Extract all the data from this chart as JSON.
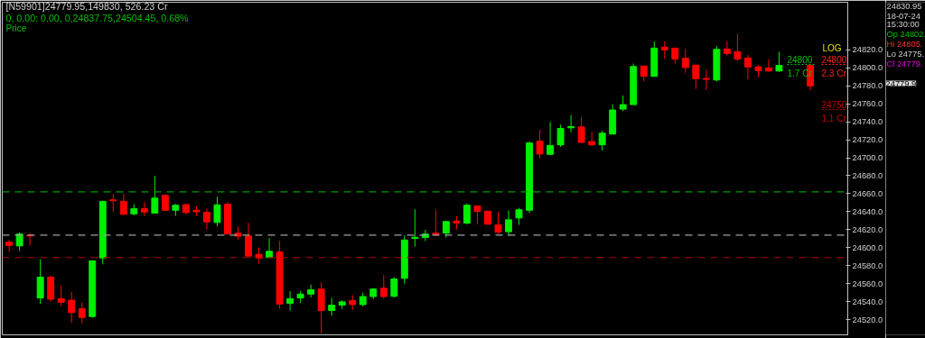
{
  "chart_data": {
    "type": "candlestick",
    "title": "[N59901]24779.95,149830, 526.23 Cr",
    "subtitle": "0,  0.00:  0.00,  0,24837.75,24504.45, 0.68%",
    "categories": [
      null,
      null,
      null,
      null,
      null,
      null,
      null,
      null,
      null,
      null,
      null,
      null,
      null,
      null,
      null,
      null,
      null,
      null,
      null,
      null,
      null,
      null,
      null,
      null,
      null,
      null,
      null,
      null,
      null,
      null,
      null,
      null,
      null,
      null,
      null,
      null,
      null,
      null,
      null,
      null,
      null,
      null,
      null,
      null,
      null,
      null,
      null,
      null,
      null,
      null,
      null,
      null,
      null,
      null,
      null,
      null,
      null,
      null,
      null,
      null,
      null,
      null,
      null,
      null,
      null,
      null,
      null,
      null,
      null,
      null,
      null,
      null,
      null,
      null,
      null,
      null,
      null,
      null
    ],
    "ohlc": [
      [
        24606.2,
        24608.5,
        24595.3,
        24602.5
      ],
      [
        24601.9,
        24617.1,
        24596.3,
        24615.1
      ],
      [
        24613.8,
        24615.8,
        24602.5,
        24613.1
      ],
      [
        24544.0,
        24587.0,
        24537.3,
        24567.1
      ],
      [
        24567.1,
        24569.1,
        24540.0,
        24542.6
      ],
      [
        24543.3,
        24558.2,
        24535.0,
        24539.3
      ],
      [
        24541.6,
        24550.9,
        24516.2,
        24527.7
      ],
      [
        24532.0,
        24539.0,
        24515.8,
        24522.4
      ],
      [
        24523.4,
        24586.0,
        24522.0,
        24585.3
      ],
      [
        24588.6,
        24652.5,
        24581.4,
        24651.5
      ],
      [
        24653.2,
        24659.8,
        24640.0,
        24652.1
      ],
      [
        24651.5,
        24659.8,
        24637.0,
        24637.0
      ],
      [
        24637.6,
        24648.2,
        24636.0,
        24643.3
      ],
      [
        24643.3,
        24650.9,
        24635.0,
        24639.6
      ],
      [
        24638.3,
        24680.0,
        24638.3,
        24655.2
      ],
      [
        24658.2,
        24659.5,
        24641.6,
        24641.6
      ],
      [
        24641.6,
        24648.6,
        24635.3,
        24647.2
      ],
      [
        24647.9,
        24649.2,
        24637.0,
        24639.0
      ],
      [
        24641.6,
        24645.9,
        24635.0,
        24639.9
      ],
      [
        24639.3,
        24643.3,
        24620.4,
        24628.7
      ],
      [
        24628.0,
        24656.8,
        24623.7,
        24647.6
      ],
      [
        24648.2,
        24650.9,
        24615.1,
        24615.1
      ],
      [
        24616.1,
        24623.7,
        24608.5,
        24612.8
      ],
      [
        24613.1,
        24627.7,
        24590.6,
        24590.6
      ],
      [
        24592.6,
        24600.2,
        24582.0,
        24588.6
      ],
      [
        24589.0,
        24610.5,
        24589.0,
        24595.9
      ],
      [
        24595.3,
        24607.2,
        24532.4,
        24537.3
      ],
      [
        24538.0,
        24551.6,
        24530.0,
        24543.3
      ],
      [
        24544.0,
        24551.6,
        24538.3,
        24548.3
      ],
      [
        24548.3,
        24558.9,
        24544.6,
        24553.2
      ],
      [
        24553.9,
        24561.5,
        24504.45,
        24530.0
      ],
      [
        24530.0,
        24544.0,
        24524.4,
        24536.0
      ],
      [
        24536.0,
        24541.6,
        24531.7,
        24539.7
      ],
      [
        24541.0,
        24547.3,
        24531.0,
        24536.7
      ],
      [
        24536.7,
        24549.9,
        24534.4,
        24545.6
      ],
      [
        24545.6,
        24554.9,
        24542.6,
        24553.9
      ],
      [
        24554.9,
        24569.4,
        24543.3,
        24545.6
      ],
      [
        24545.9,
        24567.1,
        24544.3,
        24565.1
      ],
      [
        24565.8,
        24613.5,
        24559.8,
        24608.5
      ],
      [
        24610.2,
        24642.6,
        24601.2,
        24611.5
      ],
      [
        24611.2,
        24619.8,
        24607.2,
        24615.1
      ],
      [
        24616.1,
        24642.2,
        24612.8,
        24614.5
      ],
      [
        24616.1,
        24630.0,
        24611.1,
        24629.0
      ],
      [
        24629.6,
        24635.3,
        24620.1,
        24627.3
      ],
      [
        24627.3,
        24649.2,
        24626.0,
        24647.2
      ],
      [
        24646.5,
        24646.5,
        24626.0,
        24640.3
      ],
      [
        24640.6,
        24640.6,
        24626.0,
        24626.0
      ],
      [
        24625.4,
        24639.9,
        24615.1,
        24617.4
      ],
      [
        24617.7,
        24641.3,
        24612.8,
        24631.0
      ],
      [
        24633.0,
        24644.2,
        24625.4,
        24642.2
      ],
      [
        24641.6,
        24718.0,
        24638.6,
        24716.4
      ],
      [
        24718.4,
        24730.9,
        24699.2,
        24704.1
      ],
      [
        24703.8,
        24739.6,
        24703.8,
        24713.7
      ],
      [
        24714.4,
        24736.9,
        24712.1,
        24732.6
      ],
      [
        24733.3,
        24747.5,
        24728.3,
        24734.6
      ],
      [
        24734.3,
        24745.5,
        24717.0,
        24717.0
      ],
      [
        24718.0,
        24728.6,
        24713.1,
        24714.4
      ],
      [
        24714.4,
        24730.3,
        24708.1,
        24727.3
      ],
      [
        24726.3,
        24759.4,
        24726.3,
        24753.1
      ],
      [
        24754.1,
        24769.3,
        24751.8,
        24759.1
      ],
      [
        24759.1,
        24804.8,
        24759.1,
        24801.5
      ],
      [
        24802.1,
        24802.1,
        24784.9,
        24790.5
      ],
      [
        24790.5,
        24829.6,
        24790.5,
        24822.0
      ],
      [
        24823.0,
        24829.6,
        24810.4,
        24820.0
      ],
      [
        24822.0,
        24822.0,
        24804.7,
        24809.7
      ],
      [
        24810.7,
        24821.3,
        24794.5,
        24800.4
      ],
      [
        24803.1,
        24803.1,
        24776.6,
        24787.9
      ],
      [
        24788.2,
        24797.8,
        24775.3,
        24787.2
      ],
      [
        24786.5,
        24824.6,
        24784.9,
        24820.6
      ],
      [
        24821.0,
        24829.6,
        24813.7,
        24816.0
      ],
      [
        24818.0,
        24837.75,
        24808.0,
        24809.7
      ],
      [
        24811.0,
        24814.3,
        24787.2,
        24801.1
      ],
      [
        24801.1,
        24803.1,
        24789.8,
        24797.1
      ],
      [
        24799.8,
        24809.7,
        24795.8,
        24796.5
      ],
      [
        24796.5,
        24818.0,
        24795.8,
        24802.7
      ],
      null,
      null,
      [
        24802.7,
        24805.0,
        24775.0,
        24779.95
      ]
    ],
    "colors": [
      "#ff0000",
      "#00ee00",
      "#ff0000",
      "#00ee00",
      "#ff0000",
      "#ff0000",
      "#ff0000",
      "#ff0000",
      "#00ee00",
      "#00ee00",
      "#ff0000",
      "#ff0000",
      "#00ee00",
      "#ff0000",
      "#00ee00",
      "#ff0000",
      "#00ee00",
      "#ff0000",
      "#ff0000",
      "#ff0000",
      "#00ee00",
      "#ff0000",
      "#ff0000",
      "#ff0000",
      "#ff0000",
      "#00ee00",
      "#ff0000",
      "#00ee00",
      "#00ee00",
      "#00ee00",
      "#ff0000",
      "#00ee00",
      "#00ee00",
      "#ff0000",
      "#00ee00",
      "#00ee00",
      "#ff0000",
      "#00ee00",
      "#00ee00",
      "#00ee00",
      "#00ee00",
      "#ff0000",
      "#00ee00",
      "#ff0000",
      "#00ee00",
      "#ff0000",
      "#ff0000",
      "#ff0000",
      "#00ee00",
      "#00ee00",
      "#00ee00",
      "#ff0000",
      "#00ee00",
      "#00ee00",
      "#00ee00",
      "#ff0000",
      "#ff0000",
      "#00ee00",
      "#00ee00",
      "#00ee00",
      "#00ee00",
      "#ff0000",
      "#00ee00",
      "#ff0000",
      "#ff0000",
      "#ff0000",
      "#ff0000",
      "#ff0000",
      "#00ee00",
      "#ff0000",
      "#ff0000",
      "#ff0000",
      "#ff0000",
      "#ff0000",
      "#00ee00",
      null,
      null,
      "#ff0000"
    ],
    "ylim": [
      24503,
      24873
    ],
    "yticks": [
      {
        "value": 24520,
        "label": "24520.0"
      },
      {
        "value": 24540,
        "label": "24540.0"
      },
      {
        "value": 24560,
        "label": "24560.0"
      },
      {
        "value": 24580,
        "label": "24580.0"
      },
      {
        "value": 24600,
        "label": "24600.0"
      },
      {
        "value": 24620,
        "label": "24620.0"
      },
      {
        "value": 24640,
        "label": "24640.0"
      },
      {
        "value": 24660,
        "label": "24660.0"
      },
      {
        "value": 24680,
        "label": "24680.0"
      },
      {
        "value": 24700,
        "label": "24700.0"
      },
      {
        "value": 24720,
        "label": "24720.0"
      },
      {
        "value": 24740,
        "label": "24740.0"
      },
      {
        "value": 24760,
        "label": "24760.0"
      },
      {
        "value": 24780,
        "label": "24780.0"
      },
      {
        "value": 24800,
        "label": "24800.0"
      },
      {
        "value": 24820,
        "label": "24820.0"
      }
    ],
    "tick_labels": "y",
    "grid": false,
    "ref_lines": [
      {
        "axis": "y",
        "value": 24662,
        "label": null,
        "color": "#00a000",
        "line_style": "dashed"
      },
      {
        "axis": "y",
        "value": 24614,
        "label": null,
        "color": "#a0a0a0",
        "line_style": "dashed"
      },
      {
        "axis": "y",
        "value": 24589,
        "label": null,
        "color": "#b00000",
        "line_style": "dashed"
      }
    ],
    "annotations": [
      "Price",
      "LOG",
      "24830.95",
      "18-07-24",
      "15:30:00",
      "Op 24802.",
      "Hi 24805.",
      "Lo 24775.",
      "Cl 24779.",
      "24800\n1.7 Cr",
      "24800\n2.3 Cr",
      "24750\n1.1 Cr",
      "24779.9"
    ]
  }
}
